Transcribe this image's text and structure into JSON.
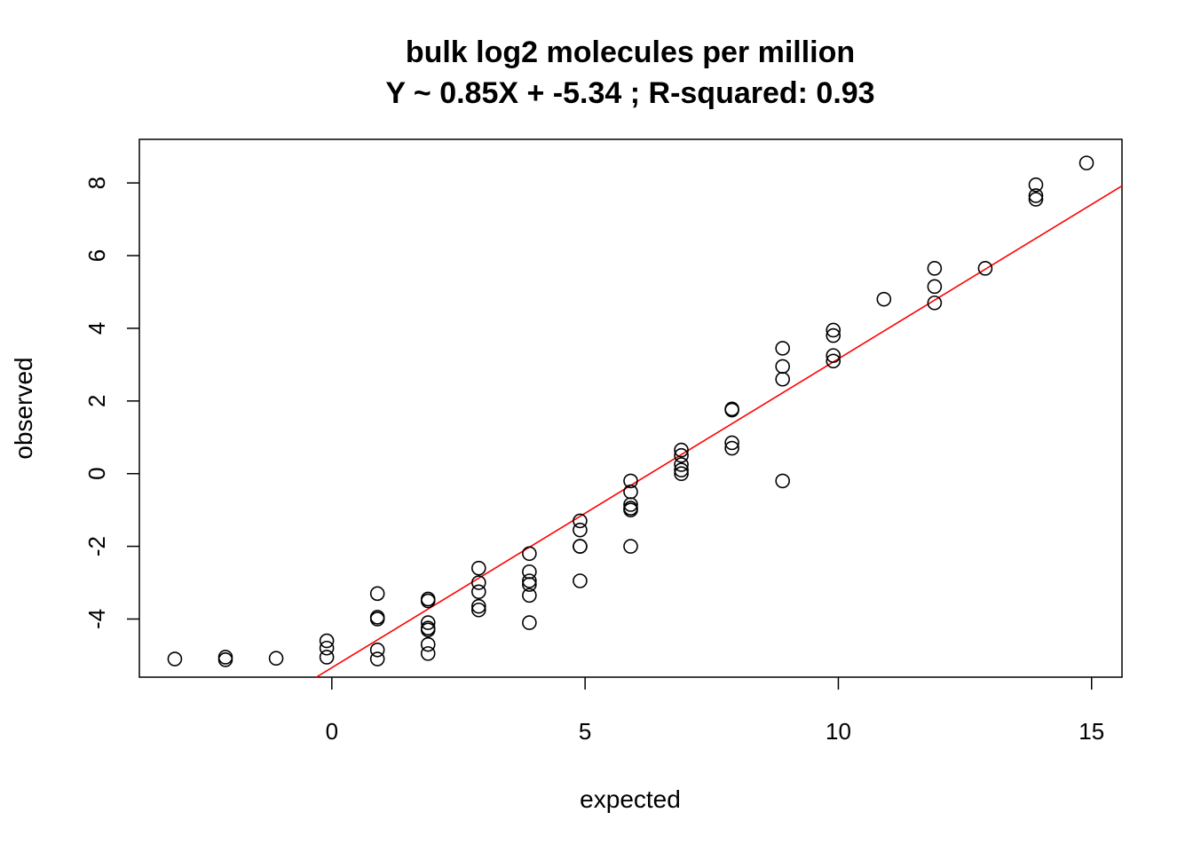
{
  "chart_data": {
    "type": "scatter",
    "title": "bulk log2 molecules per million",
    "subtitle": "Y ~ 0.85X + -5.34 ; R-squared: 0.93",
    "xlabel": "expected",
    "ylabel": "observed",
    "xlim": [
      -3.8,
      15.6
    ],
    "ylim": [
      -5.6,
      9.2
    ],
    "xticks": [
      0,
      5,
      10,
      15
    ],
    "yticks": [
      -4,
      -2,
      0,
      2,
      4,
      6,
      8
    ],
    "grid": false,
    "fit_line": {
      "slope": 0.85,
      "intercept": -5.34,
      "color": "#ff0000"
    },
    "points": [
      {
        "x": -3.1,
        "y": -5.1
      },
      {
        "x": -2.1,
        "y": -5.05
      },
      {
        "x": -2.1,
        "y": -5.12
      },
      {
        "x": -1.1,
        "y": -5.08
      },
      {
        "x": -0.1,
        "y": -4.6
      },
      {
        "x": -0.1,
        "y": -4.8
      },
      {
        "x": -0.1,
        "y": -5.05
      },
      {
        "x": 0.9,
        "y": -3.3
      },
      {
        "x": 0.9,
        "y": -3.95
      },
      {
        "x": 0.9,
        "y": -4.0
      },
      {
        "x": 0.9,
        "y": -4.85
      },
      {
        "x": 0.9,
        "y": -5.1
      },
      {
        "x": 1.9,
        "y": -3.45
      },
      {
        "x": 1.9,
        "y": -3.5
      },
      {
        "x": 1.9,
        "y": -4.1
      },
      {
        "x": 1.9,
        "y": -4.25
      },
      {
        "x": 1.9,
        "y": -4.3
      },
      {
        "x": 1.9,
        "y": -4.7
      },
      {
        "x": 1.9,
        "y": -4.95
      },
      {
        "x": 2.9,
        "y": -2.6
      },
      {
        "x": 2.9,
        "y": -3.0
      },
      {
        "x": 2.9,
        "y": -3.25
      },
      {
        "x": 2.9,
        "y": -3.65
      },
      {
        "x": 2.9,
        "y": -3.75
      },
      {
        "x": 3.9,
        "y": -2.2
      },
      {
        "x": 3.9,
        "y": -2.7
      },
      {
        "x": 3.9,
        "y": -2.95
      },
      {
        "x": 3.9,
        "y": -3.05
      },
      {
        "x": 3.9,
        "y": -3.35
      },
      {
        "x": 3.9,
        "y": -4.1
      },
      {
        "x": 4.9,
        "y": -1.3
      },
      {
        "x": 4.9,
        "y": -1.55
      },
      {
        "x": 4.9,
        "y": -2.0
      },
      {
        "x": 4.9,
        "y": -2.0
      },
      {
        "x": 4.9,
        "y": -2.95
      },
      {
        "x": 5.9,
        "y": -0.2
      },
      {
        "x": 5.9,
        "y": -0.5
      },
      {
        "x": 5.9,
        "y": -0.85
      },
      {
        "x": 5.9,
        "y": -0.95
      },
      {
        "x": 5.9,
        "y": -1.0
      },
      {
        "x": 5.9,
        "y": -2.0
      },
      {
        "x": 6.9,
        "y": 0.65
      },
      {
        "x": 6.9,
        "y": 0.5
      },
      {
        "x": 6.9,
        "y": 0.25
      },
      {
        "x": 6.9,
        "y": 0.1
      },
      {
        "x": 6.9,
        "y": 0.0
      },
      {
        "x": 7.9,
        "y": 1.75
      },
      {
        "x": 7.9,
        "y": 1.78
      },
      {
        "x": 7.9,
        "y": 0.85
      },
      {
        "x": 7.9,
        "y": 0.7
      },
      {
        "x": 8.9,
        "y": 3.45
      },
      {
        "x": 8.9,
        "y": 2.95
      },
      {
        "x": 8.9,
        "y": 2.6
      },
      {
        "x": 8.9,
        "y": -0.2
      },
      {
        "x": 9.9,
        "y": 3.95
      },
      {
        "x": 9.9,
        "y": 3.8
      },
      {
        "x": 9.9,
        "y": 3.25
      },
      {
        "x": 9.9,
        "y": 3.1
      },
      {
        "x": 10.9,
        "y": 4.8
      },
      {
        "x": 11.9,
        "y": 5.65
      },
      {
        "x": 11.9,
        "y": 5.15
      },
      {
        "x": 11.9,
        "y": 4.7
      },
      {
        "x": 12.9,
        "y": 5.65
      },
      {
        "x": 13.9,
        "y": 7.95
      },
      {
        "x": 13.9,
        "y": 7.65
      },
      {
        "x": 13.9,
        "y": 7.55
      },
      {
        "x": 14.9,
        "y": 8.55
      }
    ]
  }
}
